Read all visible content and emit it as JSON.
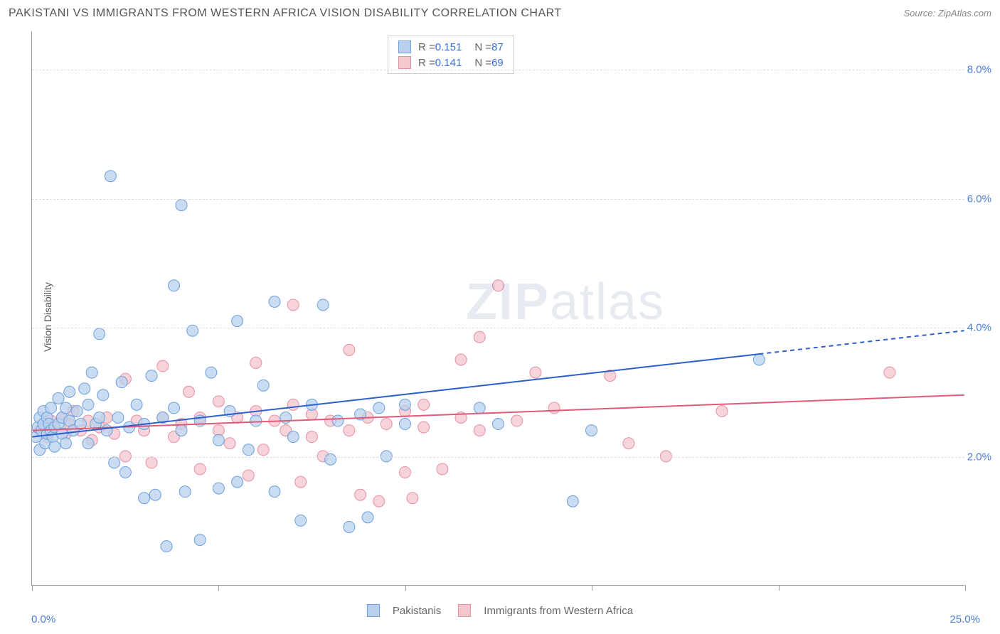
{
  "header": {
    "title": "PAKISTANI VS IMMIGRANTS FROM WESTERN AFRICA VISION DISABILITY CORRELATION CHART",
    "source_prefix": "Source: ",
    "source_name": "ZipAtlas.com"
  },
  "axes": {
    "y_label": "Vision Disability",
    "y_ticks": [
      {
        "value": 2.0,
        "label": "2.0%"
      },
      {
        "value": 4.0,
        "label": "4.0%"
      },
      {
        "value": 6.0,
        "label": "6.0%"
      },
      {
        "value": 8.0,
        "label": "8.0%"
      }
    ],
    "x_min_label": "0.0%",
    "x_max_label": "25.0%",
    "xlim": [
      0,
      25
    ],
    "ylim": [
      0,
      8.6
    ],
    "grid_color": "#dddddd",
    "axis_color": "#999999",
    "tick_color": "#4a7dd4",
    "x_tick_positions": [
      0,
      5,
      10,
      15,
      20,
      25
    ]
  },
  "legend_top": {
    "r_label": "R = ",
    "n_label": "N = ",
    "series": [
      {
        "r": "0.151",
        "n": "87",
        "fill": "#b8d0ec",
        "stroke": "#6b9fde"
      },
      {
        "r": "0.141",
        "n": "69",
        "fill": "#f4c6ce",
        "stroke": "#e68fa3"
      }
    ]
  },
  "legend_bottom": {
    "series": [
      {
        "label": "Pakistanis",
        "fill": "#b8d0ec",
        "stroke": "#6b9fde"
      },
      {
        "label": "Immigrants from Western Africa",
        "fill": "#f4c6ce",
        "stroke": "#e68fa3"
      }
    ]
  },
  "watermark": {
    "zip": "ZIP",
    "atlas": "atlas",
    "color": "rgba(120,140,170,0.18)"
  },
  "chart": {
    "type": "scatter",
    "marker_radius": 8,
    "marker_opacity": 0.75,
    "series_a": {
      "name": "Pakistanis",
      "fill": "#b8d0ec",
      "stroke": "#6b9fde",
      "trend": {
        "y_at_xmin": 2.3,
        "y_at_xmax": 3.95,
        "solid_until_x": 19.5,
        "color": "#2c5fc9",
        "width": 2
      },
      "points": [
        [
          0.1,
          2.3
        ],
        [
          0.15,
          2.45
        ],
        [
          0.2,
          2.6
        ],
        [
          0.2,
          2.1
        ],
        [
          0.25,
          2.4
        ],
        [
          0.3,
          2.5
        ],
        [
          0.3,
          2.7
        ],
        [
          0.35,
          2.2
        ],
        [
          0.4,
          2.35
        ],
        [
          0.4,
          2.6
        ],
        [
          0.45,
          2.5
        ],
        [
          0.5,
          2.4
        ],
        [
          0.5,
          2.75
        ],
        [
          0.55,
          2.3
        ],
        [
          0.6,
          2.45
        ],
        [
          0.6,
          2.15
        ],
        [
          0.7,
          2.9
        ],
        [
          0.7,
          2.5
        ],
        [
          0.8,
          2.6
        ],
        [
          0.8,
          2.35
        ],
        [
          0.9,
          2.75
        ],
        [
          0.9,
          2.2
        ],
        [
          1.0,
          2.55
        ],
        [
          1.0,
          3.0
        ],
        [
          1.1,
          2.4
        ],
        [
          1.2,
          2.7
        ],
        [
          1.3,
          2.5
        ],
        [
          1.4,
          3.05
        ],
        [
          1.5,
          2.2
        ],
        [
          1.5,
          2.8
        ],
        [
          1.6,
          3.3
        ],
        [
          1.7,
          2.5
        ],
        [
          1.8,
          3.9
        ],
        [
          1.8,
          2.6
        ],
        [
          1.9,
          2.95
        ],
        [
          2.0,
          2.4
        ],
        [
          2.1,
          6.35
        ],
        [
          2.2,
          1.9
        ],
        [
          2.3,
          2.6
        ],
        [
          2.4,
          3.15
        ],
        [
          2.5,
          1.75
        ],
        [
          2.6,
          2.45
        ],
        [
          2.8,
          2.8
        ],
        [
          3.0,
          1.35
        ],
        [
          3.0,
          2.5
        ],
        [
          3.2,
          3.25
        ],
        [
          3.3,
          1.4
        ],
        [
          3.5,
          2.6
        ],
        [
          3.6,
          0.6
        ],
        [
          3.8,
          2.75
        ],
        [
          3.8,
          4.65
        ],
        [
          4.0,
          5.9
        ],
        [
          4.0,
          2.4
        ],
        [
          4.1,
          1.45
        ],
        [
          4.3,
          3.95
        ],
        [
          4.5,
          2.55
        ],
        [
          4.5,
          0.7
        ],
        [
          4.8,
          3.3
        ],
        [
          5.0,
          2.25
        ],
        [
          5.0,
          1.5
        ],
        [
          5.3,
          2.7
        ],
        [
          5.5,
          4.1
        ],
        [
          5.5,
          1.6
        ],
        [
          5.8,
          2.1
        ],
        [
          6.0,
          2.55
        ],
        [
          6.2,
          3.1
        ],
        [
          6.5,
          1.45
        ],
        [
          6.5,
          4.4
        ],
        [
          6.8,
          2.6
        ],
        [
          7.0,
          2.3
        ],
        [
          7.2,
          1.0
        ],
        [
          7.5,
          2.8
        ],
        [
          7.8,
          4.35
        ],
        [
          8.0,
          1.95
        ],
        [
          8.2,
          2.55
        ],
        [
          8.5,
          0.9
        ],
        [
          8.8,
          2.65
        ],
        [
          9.0,
          1.05
        ],
        [
          9.3,
          2.75
        ],
        [
          9.5,
          2.0
        ],
        [
          10.0,
          2.5
        ],
        [
          10.0,
          2.8
        ],
        [
          12.0,
          2.75
        ],
        [
          12.5,
          2.5
        ],
        [
          14.5,
          1.3
        ],
        [
          15.0,
          2.4
        ],
        [
          19.5,
          3.5
        ]
      ]
    },
    "series_b": {
      "name": "Immigrants from Western Africa",
      "fill": "#f4c6ce",
      "stroke": "#e68fa3",
      "trend": {
        "y_at_xmin": 2.4,
        "y_at_xmax": 2.95,
        "solid_until_x": 25,
        "color": "#e05a7a",
        "width": 2
      },
      "points": [
        [
          0.2,
          2.4
        ],
        [
          0.3,
          2.5
        ],
        [
          0.4,
          2.3
        ],
        [
          0.5,
          2.55
        ],
        [
          0.6,
          2.45
        ],
        [
          0.8,
          2.6
        ],
        [
          0.9,
          2.35
        ],
        [
          1.0,
          2.5
        ],
        [
          1.1,
          2.7
        ],
        [
          1.3,
          2.4
        ],
        [
          1.5,
          2.55
        ],
        [
          1.6,
          2.25
        ],
        [
          1.8,
          2.45
        ],
        [
          2.0,
          2.6
        ],
        [
          2.2,
          2.35
        ],
        [
          2.5,
          3.2
        ],
        [
          2.5,
          2.0
        ],
        [
          2.8,
          2.55
        ],
        [
          3.0,
          2.4
        ],
        [
          3.2,
          1.9
        ],
        [
          3.5,
          2.6
        ],
        [
          3.5,
          3.4
        ],
        [
          3.8,
          2.3
        ],
        [
          4.0,
          2.5
        ],
        [
          4.2,
          3.0
        ],
        [
          4.5,
          1.8
        ],
        [
          4.5,
          2.6
        ],
        [
          5.0,
          2.4
        ],
        [
          5.0,
          2.85
        ],
        [
          5.3,
          2.2
        ],
        [
          5.5,
          2.6
        ],
        [
          5.8,
          1.7
        ],
        [
          6.0,
          2.7
        ],
        [
          6.0,
          3.45
        ],
        [
          6.2,
          2.1
        ],
        [
          6.5,
          2.55
        ],
        [
          6.8,
          2.4
        ],
        [
          7.0,
          2.8
        ],
        [
          7.0,
          4.35
        ],
        [
          7.2,
          1.6
        ],
        [
          7.5,
          2.3
        ],
        [
          7.5,
          2.65
        ],
        [
          7.8,
          2.0
        ],
        [
          8.0,
          2.55
        ],
        [
          8.5,
          3.65
        ],
        [
          8.5,
          2.4
        ],
        [
          8.8,
          1.4
        ],
        [
          9.0,
          2.6
        ],
        [
          9.3,
          1.3
        ],
        [
          9.5,
          2.5
        ],
        [
          10.0,
          1.75
        ],
        [
          10.0,
          2.7
        ],
        [
          10.2,
          1.35
        ],
        [
          10.5,
          2.45
        ],
        [
          10.5,
          2.8
        ],
        [
          11.0,
          1.8
        ],
        [
          11.5,
          2.6
        ],
        [
          11.5,
          3.5
        ],
        [
          12.0,
          2.4
        ],
        [
          12.0,
          3.85
        ],
        [
          12.5,
          4.65
        ],
        [
          13.0,
          2.55
        ],
        [
          13.5,
          3.3
        ],
        [
          14.0,
          2.75
        ],
        [
          15.5,
          3.25
        ],
        [
          16.0,
          2.2
        ],
        [
          17.0,
          2.0
        ],
        [
          18.5,
          2.7
        ],
        [
          23.0,
          3.3
        ]
      ]
    }
  }
}
